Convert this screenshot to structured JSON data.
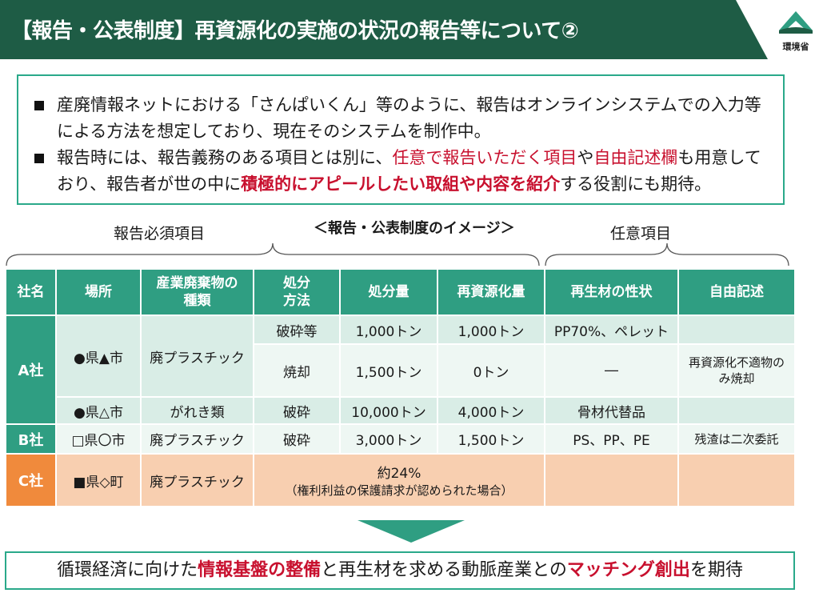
{
  "title": "【報告・公表制度】再資源化の実施の状況の報告等について②",
  "logo": {
    "label": "環境省",
    "icon": "ministry-logo-icon"
  },
  "bullets": {
    "b1": "産廃情報ネットにおける「さんぱいくん」等のように、報告はオンラインシステムでの入力等による方法を想定しており、現在そのシステムを制作中。",
    "b2_a": "報告時には、報告義務のある項目とは別に、",
    "b2_red1": "任意で報告いただく項目",
    "b2_b": "や",
    "b2_red2": "自由記述欄",
    "b2_c": "も用意しており、報告者が世の中に",
    "b2_redb": "積極的にアピールしたい取組や内容を紹介",
    "b2_d": "する役割にも期待。"
  },
  "labels": {
    "must": "報告必須項目",
    "image": "＜報告・公表制度のイメージ＞",
    "optional": "任意項目"
  },
  "table": {
    "headers": {
      "company": "社名",
      "place": "場所",
      "waste_type_1": "産業廃棄物の",
      "waste_type_2": "種類",
      "method_1": "処分",
      "method_2": "方法",
      "amount": "処分量",
      "recycled": "再資源化量",
      "property": "再生材の性状",
      "free": "自由記述"
    },
    "a": {
      "company": "A社",
      "place1": "●県▲市",
      "type1": "廃プラスチック",
      "r1_method": "破砕等",
      "r1_amount": "1,000トン",
      "r1_recycled": "1,000トン",
      "r1_property": "PP70%、ペレット",
      "r2_method": "焼却",
      "r2_amount": "1,500トン",
      "r2_recycled": "0トン",
      "r2_property": "―",
      "r2_free": "再資源化不適物のみ焼却",
      "place2": "●県△市",
      "type2": "がれき類",
      "r3_method": "破砕",
      "r3_amount": "10,000トン",
      "r3_recycled": "4,000トン",
      "r3_property": "骨材代替品"
    },
    "b": {
      "company": "B社",
      "place": "□県〇市",
      "type": "廃プラスチック",
      "method": "破砕",
      "amount": "3,000トン",
      "recycled": "1,500トン",
      "property": "PS、PP、PE",
      "free": "残渣は二次委託"
    },
    "c": {
      "company": "C社",
      "place": "■県◇町",
      "type": "廃プラスチック",
      "merged_1": "約24%",
      "merged_2": "（権利利益の保護請求が認められた場合）"
    }
  },
  "bottom": {
    "a": "循環経済に向けた",
    "red1": "情報基盤の整備",
    "b": "と再生材を求める動脈産業との",
    "red2": "マッチング創出",
    "c": "を期待"
  },
  "colors": {
    "title_bg": "#1e5c45",
    "header_green": "#2f9e82",
    "row_light": "#d9ede6",
    "c_company": "#f08a3c",
    "c_row": "#f8cfb0",
    "accent_red": "#c8102e"
  }
}
